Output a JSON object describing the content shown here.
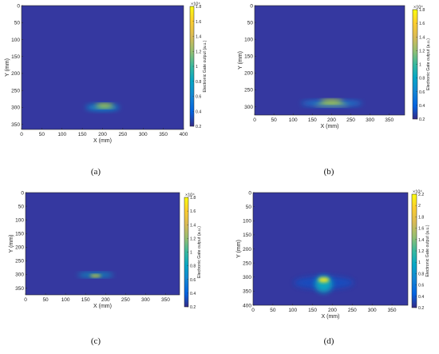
{
  "chart_data": [
    {
      "type": "heatmap",
      "caption": "(a)",
      "xlabel": "X (mm)",
      "ylabel": "Y (mm)",
      "colorbar_label": "Electronic Gate output (a.u.)",
      "colorbar_exponent": "×10⁴",
      "xlim": [
        0,
        400
      ],
      "ylim": [
        365,
        0
      ],
      "xticks": [
        0,
        50,
        100,
        150,
        200,
        250,
        300,
        350,
        400
      ],
      "yticks": [
        0,
        50,
        100,
        150,
        200,
        250,
        300,
        350
      ],
      "clim": [
        0.2,
        1.8
      ],
      "cticks": [
        0.2,
        0.4,
        0.6,
        0.8,
        1,
        1.2,
        1.4,
        1.6,
        1.8
      ],
      "hotspots": [
        {
          "x": 205,
          "y": 295,
          "sx": 22,
          "sy": 5,
          "value": 1.8
        },
        {
          "x": 200,
          "y": 300,
          "sx": 42,
          "sy": 9,
          "value": 0.7
        }
      ]
    },
    {
      "type": "heatmap",
      "caption": "(b)",
      "xlabel": "X (mm)",
      "ylabel": "Y (mm)",
      "colorbar_label": "Electronic Gate output (a.u.)",
      "colorbar_exponent": "×10⁴",
      "xlim": [
        0,
        390
      ],
      "ylim": [
        325,
        0
      ],
      "xticks": [
        0,
        50,
        100,
        150,
        200,
        250,
        300,
        350
      ],
      "yticks": [
        0,
        50,
        100,
        150,
        200,
        250,
        300
      ],
      "clim": [
        0.2,
        1.8
      ],
      "cticks": [
        0.2,
        0.4,
        0.6,
        0.8,
        1,
        1.2,
        1.4,
        1.6,
        1.8
      ],
      "hotspots": [
        {
          "x": 200,
          "y": 285,
          "sx": 30,
          "sy": 5,
          "value": 1.8
        },
        {
          "x": 200,
          "y": 295,
          "sx": 45,
          "sy": 4,
          "value": 1.2
        },
        {
          "x": 200,
          "y": 290,
          "sx": 80,
          "sy": 8,
          "value": 0.6
        }
      ]
    },
    {
      "type": "heatmap",
      "caption": "(c)",
      "xlabel": "X (mm)",
      "ylabel": "Y (mm)",
      "colorbar_label": "Electronic Gate output (a.u.)",
      "colorbar_exponent": "×10⁴",
      "xlim": [
        0,
        385
      ],
      "ylim": [
        375,
        0
      ],
      "xticks": [
        0,
        50,
        100,
        150,
        200,
        250,
        300,
        350
      ],
      "yticks": [
        0,
        50,
        100,
        150,
        200,
        250,
        300,
        350
      ],
      "clim": [
        0.2,
        1.8
      ],
      "cticks": [
        0.2,
        0.4,
        0.6,
        0.8,
        1,
        1.2,
        1.4,
        1.6,
        1.8
      ],
      "hotspots": [
        {
          "x": 175,
          "y": 305,
          "sx": 14,
          "sy": 4,
          "value": 1.7
        },
        {
          "x": 175,
          "y": 302,
          "sx": 45,
          "sy": 7,
          "value": 0.8
        }
      ]
    },
    {
      "type": "heatmap",
      "caption": "(d)",
      "xlabel": "X (mm)",
      "ylabel": "Y (mm)",
      "colorbar_label": "Electronic Gate output (a.u.)",
      "colorbar_exponent": "×10⁴",
      "xlim": [
        0,
        390
      ],
      "ylim": [
        400,
        0
      ],
      "xticks": [
        0,
        50,
        100,
        150,
        200,
        250,
        300,
        350
      ],
      "yticks": [
        0,
        50,
        100,
        150,
        200,
        250,
        300,
        350,
        400
      ],
      "clim": [
        0.2,
        2.2
      ],
      "cticks": [
        0.2,
        0.4,
        0.6,
        0.8,
        1,
        1.2,
        1.4,
        1.6,
        1.8,
        2,
        2.2
      ],
      "hotspots": [
        {
          "x": 178,
          "y": 310,
          "sx": 14,
          "sy": 9,
          "value": 2.1
        },
        {
          "x": 178,
          "y": 325,
          "sx": 22,
          "sy": 30,
          "value": 1.0
        },
        {
          "x": 178,
          "y": 320,
          "sx": 75,
          "sy": 22,
          "value": 0.35
        }
      ]
    }
  ]
}
